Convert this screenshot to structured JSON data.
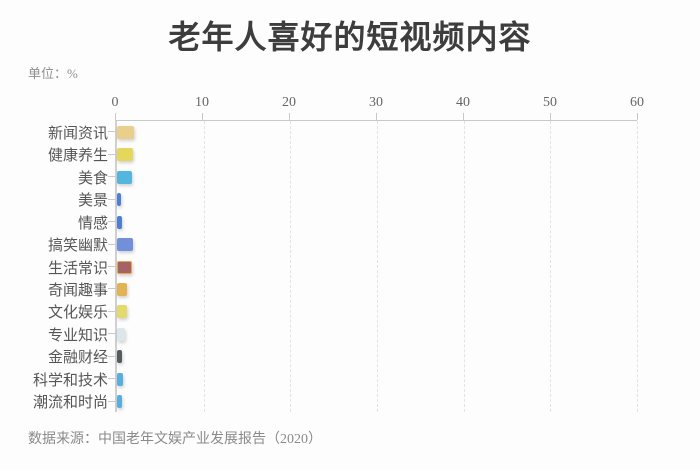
{
  "page": {
    "title": "老年人喜好的短视频内容",
    "unit_label": "单位：%",
    "source": "数据来源：中国老年文娱产业发展报告（2020）"
  },
  "chart_data": {
    "type": "bar",
    "orientation": "horizontal",
    "title": "老年人喜好的短视频内容",
    "unit": "%",
    "xlim": [
      0,
      60
    ],
    "x_ticks": [
      0,
      10,
      20,
      30,
      40,
      50,
      60
    ],
    "grid": "vertical-dashed",
    "legend": "none",
    "categories": [
      "新闻资讯",
      "健康养生",
      "美食",
      "美景",
      "情感",
      "搞笑幽默",
      "生活常识",
      "奇闻趣事",
      "文化娱乐",
      "专业知识",
      "金融财经",
      "科学和技术",
      "潮流和时尚"
    ],
    "values": [
      2.0,
      1.9,
      1.7,
      0.45,
      0.55,
      1.8,
      1.75,
      1.1,
      1.2,
      0.9,
      0.6,
      0.65,
      0.55
    ],
    "colors": [
      "#e9cf8b",
      "#e5d75c",
      "#54b6dc",
      "#4d7fd2",
      "#4d7fd2",
      "#7290da",
      "#a66363",
      "#e2b355",
      "#e3d96e",
      "#dbe7ea",
      "#565b5e",
      "#58aede",
      "#58aede"
    ],
    "border_colors": [
      null,
      null,
      null,
      null,
      null,
      null,
      "#e2a855",
      null,
      null,
      null,
      null,
      null,
      null
    ],
    "axis_color": "#c9c9c9",
    "grid_color": "#e3e3e3",
    "label_color": "#565656",
    "tick_label_color": "#666666"
  }
}
